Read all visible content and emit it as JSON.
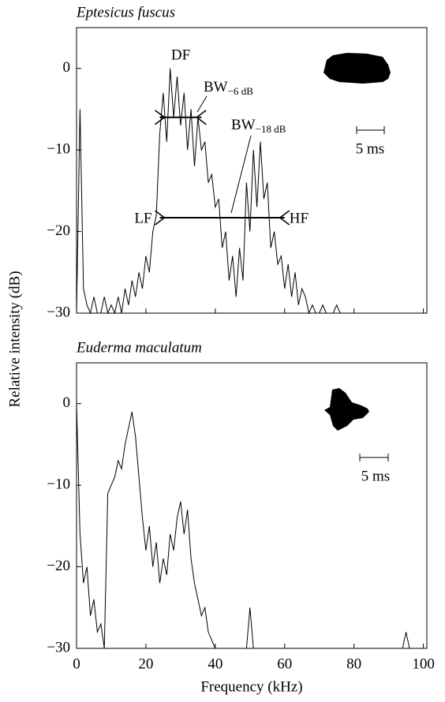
{
  "chart_data": [
    {
      "type": "line",
      "title": "Eptesicus fuscus",
      "ylabel": "Relative intensity (dB)",
      "color": "#000000",
      "xlim": [
        0,
        101
      ],
      "ylim": [
        -30,
        5
      ],
      "yticks": [
        0,
        {
          "value": -10,
          "label": "−10"
        },
        {
          "value": -20,
          "label": "−20"
        },
        {
          "value": -30,
          "label": "−30"
        }
      ],
      "x": [
        0,
        1,
        2,
        3,
        4,
        5,
        6,
        7,
        8,
        9,
        10,
        11,
        12,
        13,
        14,
        15,
        16,
        17,
        18,
        19,
        20,
        21,
        22,
        23,
        24,
        25,
        26,
        27,
        28,
        29,
        30,
        31,
        32,
        33,
        34,
        35,
        36,
        37,
        38,
        39,
        40,
        41,
        42,
        43,
        44,
        45,
        46,
        47,
        48,
        49,
        50,
        51,
        52,
        53,
        54,
        55,
        56,
        57,
        58,
        59,
        60,
        61,
        62,
        63,
        64,
        65,
        66,
        67,
        68,
        69,
        70,
        71,
        72,
        73,
        74,
        75,
        76,
        77,
        78,
        79,
        80,
        81,
        82,
        83,
        84,
        85,
        86,
        87,
        88,
        89,
        90,
        91,
        92,
        93,
        94,
        95,
        96,
        97,
        98,
        99,
        100
      ],
      "values": [
        -30,
        -5,
        -27,
        -29,
        -30,
        -28,
        -30,
        -30,
        -28,
        -30,
        -29,
        -30,
        -28,
        -30,
        -27,
        -29,
        -26,
        -28,
        -25,
        -27,
        -23,
        -25,
        -20,
        -18,
        -8,
        -3,
        -9,
        0,
        -6,
        -1,
        -7,
        -3,
        -10,
        -5,
        -12,
        -6,
        -10,
        -9,
        -14,
        -13,
        -17,
        -16,
        -22,
        -20,
        -26,
        -23,
        -28,
        -22,
        -26,
        -14,
        -20,
        -10,
        -17,
        -9,
        -16,
        -14,
        -22,
        -20,
        -24,
        -23,
        -27,
        -24,
        -28,
        -25,
        -29,
        -27,
        -28,
        -30,
        -29,
        -30,
        -30,
        -29,
        -30,
        -30,
        -30,
        -29,
        -30,
        -30,
        -30,
        -30,
        -30,
        -30,
        -30,
        -30,
        -30,
        -30,
        -30,
        -30,
        -30,
        -30,
        -30,
        -30,
        -30,
        -30,
        -30,
        -30,
        -30,
        -30,
        -30,
        -30,
        -30
      ],
      "peak_label": "DF",
      "bandwidths": [
        {
          "name": "BW",
          "subscript": "−6 dB",
          "low": 24,
          "high": 36,
          "level": -6
        },
        {
          "name": "BW",
          "subscript": "−18 dB",
          "low": 24,
          "high": 60,
          "level": -18.3
        }
      ],
      "edge_labels": [
        "LF",
        "HF"
      ],
      "scale_bar": "5 ms"
    },
    {
      "type": "line",
      "title": "Euderma maculatum",
      "xlabel": "Frequency (kHz)",
      "color": "#000000",
      "xlim": [
        0,
        101
      ],
      "ylim": [
        -30,
        5
      ],
      "xticks": [
        0,
        20,
        40,
        60,
        80,
        100
      ],
      "yticks": [
        0,
        {
          "value": -10,
          "label": "−10"
        },
        {
          "value": -20,
          "label": "−20"
        },
        {
          "value": -30,
          "label": "−30"
        }
      ],
      "x": [
        0,
        1,
        2,
        3,
        4,
        5,
        6,
        7,
        8,
        9,
        10,
        11,
        12,
        13,
        14,
        15,
        16,
        17,
        18,
        19,
        20,
        21,
        22,
        23,
        24,
        25,
        26,
        27,
        28,
        29,
        30,
        31,
        32,
        33,
        34,
        35,
        36,
        37,
        38,
        39,
        40,
        41,
        42,
        43,
        44,
        45,
        46,
        47,
        48,
        49,
        50,
        51,
        52,
        53,
        54,
        55,
        56,
        57,
        58,
        59,
        60,
        61,
        62,
        63,
        64,
        65,
        66,
        67,
        68,
        69,
        70,
        71,
        72,
        73,
        74,
        75,
        76,
        77,
        78,
        79,
        80,
        81,
        82,
        83,
        84,
        85,
        86,
        87,
        88,
        89,
        90,
        91,
        92,
        93,
        94,
        95,
        96,
        97,
        98,
        99,
        100
      ],
      "values": [
        0,
        -16,
        -22,
        -20,
        -26,
        -24,
        -28,
        -27,
        -30,
        -11,
        -10,
        -9,
        -7,
        -8,
        -5,
        -3,
        -1,
        -4,
        -9,
        -14,
        -18,
        -15,
        -20,
        -17,
        -22,
        -19,
        -21,
        -16,
        -18,
        -14,
        -12,
        -16,
        -13,
        -19,
        -22,
        -24,
        -26,
        -25,
        -28,
        -29,
        -30,
        -30,
        -30,
        -30,
        -30,
        -30,
        -30,
        -30,
        -30,
        -30,
        -25,
        -30,
        -30,
        -30,
        -30,
        -30,
        -30,
        -30,
        -30,
        -30,
        -30,
        -30,
        -30,
        -30,
        -30,
        -30,
        -30,
        -30,
        -30,
        -30,
        -30,
        -30,
        -30,
        -30,
        -30,
        -30,
        -30,
        -30,
        -30,
        -30,
        -30,
        -30,
        -30,
        -30,
        -30,
        -30,
        -30,
        -30,
        -30,
        -30,
        -30,
        -30,
        -30,
        -30,
        -30,
        -28,
        -30,
        -30,
        -30,
        -30,
        -30
      ],
      "scale_bar": "5 ms"
    }
  ]
}
